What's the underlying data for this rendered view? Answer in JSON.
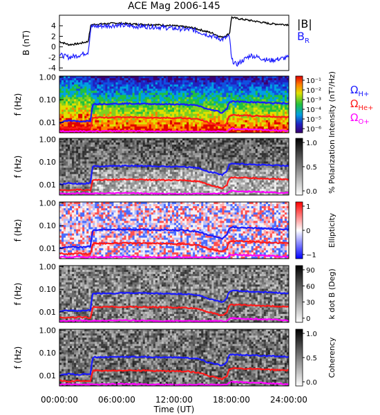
{
  "title": "ACE Mag 2006-145",
  "x_axis": {
    "label": "Time (UT)",
    "tick_labels": [
      "00:00:00",
      "06:00:00",
      "12:00:00",
      "18:00:00",
      "24:00:00"
    ]
  },
  "colors": {
    "b_total": "#000000",
    "b_r": "#1a1aff",
    "omega_h": "#1a1aff",
    "omega_he": "#ff1a1a",
    "omega_o": "#ff00ff"
  },
  "chart_data": [
    {
      "type": "line",
      "panel": "field",
      "ylabel": "B (nT)",
      "x_unit": "hours UT",
      "ylim": [
        -4.5,
        6
      ],
      "y_ticks": [
        "4",
        "2",
        "0",
        "-2",
        "-4"
      ],
      "series": [
        {
          "name": "|B|",
          "x": [
            0,
            1,
            2,
            3,
            3.3,
            4,
            6,
            8,
            10,
            12,
            14,
            16,
            17,
            17.8,
            18,
            18.5,
            20,
            22,
            24
          ],
          "values": [
            1.0,
            0.4,
            0.6,
            1.0,
            4.2,
            4.3,
            4.5,
            4.3,
            4.2,
            4.0,
            3.6,
            2.6,
            1.8,
            2.5,
            5.6,
            5.4,
            5.0,
            4.4,
            4.2
          ]
        },
        {
          "name": "B_R",
          "x": [
            0,
            1,
            2,
            3,
            3.3,
            4,
            6,
            8,
            10,
            12,
            14,
            16,
            17,
            17.8,
            18,
            18.5,
            20,
            22,
            24
          ],
          "values": [
            -1.5,
            -2.0,
            -1.6,
            -1.0,
            3.8,
            3.9,
            4.1,
            3.9,
            3.8,
            3.5,
            3.2,
            2.0,
            1.4,
            2.0,
            -2.4,
            -3.4,
            -1.6,
            -2.6,
            -2.0
          ]
        }
      ],
      "legend": [
        "|B|",
        "B",
        "R"
      ]
    },
    {
      "type": "heatmap",
      "panel": "intensity",
      "ylabel": "f (Hz)",
      "yscale": "log",
      "ylim": [
        0.004,
        1.0
      ],
      "y_ticks": [
        "1.00",
        "0.10",
        "0.01"
      ],
      "colorbar": {
        "label": "Intensity (nT²/Hz)",
        "ticks": [
          "10⁻¹",
          "10⁻²",
          "10⁻³",
          "10⁻⁴",
          "10⁻⁵",
          "10⁻⁶"
        ]
      },
      "legend": [
        "Ω",
        "H+",
        "Ω",
        "He+",
        "Ω",
        "O+"
      ]
    },
    {
      "type": "heatmap",
      "panel": "polarization",
      "ylabel": "f (Hz)",
      "yscale": "log",
      "y_ticks": [
        "1.00",
        "0.10",
        "0.01"
      ],
      "colorbar": {
        "label": "% Polarization",
        "ticks": [
          "1.0",
          "0.5",
          "0.0"
        ]
      }
    },
    {
      "type": "heatmap",
      "panel": "ellipticity",
      "ylabel": "f (Hz)",
      "yscale": "log",
      "y_ticks": [
        "1.00",
        "0.10",
        "0.01"
      ],
      "colorbar": {
        "label": "Ellipticity",
        "ticks": [
          "1",
          "0",
          "−1"
        ]
      }
    },
    {
      "type": "heatmap",
      "panel": "kdotb",
      "ylabel": "f (Hz)",
      "yscale": "log",
      "y_ticks": [
        "1.00",
        "0.10",
        "0.01"
      ],
      "colorbar": {
        "label": "k dot B (Deg)",
        "ticks": [
          "90",
          "60",
          "30",
          "0"
        ]
      }
    },
    {
      "type": "heatmap",
      "panel": "coherency",
      "ylabel": "f (Hz)",
      "yscale": "log",
      "y_ticks": [
        "1.00",
        "0.10",
        "0.01"
      ],
      "colorbar": {
        "label": "Coherency",
        "ticks": [
          "1.0",
          "0.5",
          "0.0"
        ]
      }
    }
  ],
  "gyrofrequency_lines": {
    "x": [
      0,
      1,
      2,
      3.3,
      3.5,
      5,
      7,
      9,
      11,
      13,
      14.5,
      15.5,
      16.5,
      17,
      17.5,
      17.8,
      18,
      19,
      21,
      23,
      24
    ],
    "H+": [
      0.01,
      0.012,
      0.011,
      0.012,
      0.065,
      0.066,
      0.068,
      0.066,
      0.064,
      0.062,
      0.055,
      0.038,
      0.032,
      0.026,
      0.038,
      0.08,
      0.085,
      0.082,
      0.076,
      0.07,
      0.068
    ],
    "He+": [
      0.006,
      0.0055,
      0.006,
      0.0055,
      0.0165,
      0.0165,
      0.017,
      0.0165,
      0.016,
      0.0155,
      0.014,
      0.01,
      0.008,
      0.007,
      0.009,
      0.02,
      0.021,
      0.0205,
      0.019,
      0.0175,
      0.017
    ],
    "O+": [
      0.0042,
      0.004,
      0.0042,
      0.004,
      0.0041,
      0.0041,
      0.0043,
      0.0041,
      0.004,
      0.004,
      0.004,
      0.004,
      0.004,
      0.004,
      0.004,
      0.005,
      0.0053,
      0.0051,
      0.0048,
      0.0044,
      0.0043
    ]
  }
}
